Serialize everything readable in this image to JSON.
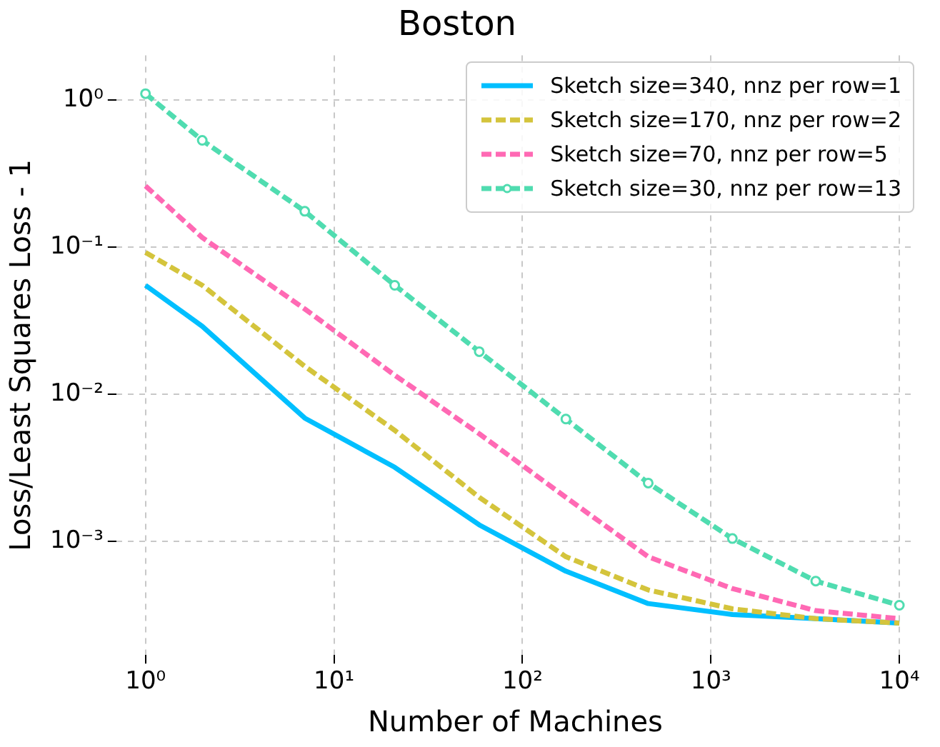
{
  "chart_data": {
    "type": "line",
    "title": "Boston",
    "xlabel": "Number of Machines",
    "ylabel": "Loss/Least Squares Loss - 1",
    "log": "xy",
    "grid": true,
    "legend": "top right",
    "xlim": [
      0.7,
      12000
    ],
    "xticks": [
      {
        "value": 1,
        "label": "10⁰"
      },
      {
        "value": 10,
        "label": "10¹"
      },
      {
        "value": 100,
        "label": "10²"
      },
      {
        "value": 1000,
        "label": "10³"
      },
      {
        "value": 10000,
        "label": "10⁴"
      }
    ],
    "ylim": [
      0.00017,
      2
    ],
    "yticks": [
      {
        "value": 0.001,
        "label": "10⁻³"
      },
      {
        "value": 0.01,
        "label": "10⁻²"
      },
      {
        "value": 0.1,
        "label": "10⁻¹"
      },
      {
        "value": 1,
        "label": "10⁰"
      }
    ],
    "x": [
      1,
      2,
      7,
      21,
      59,
      170,
      465,
      1300,
      3600,
      10000
    ],
    "series": [
      {
        "name": "Sketch size=340, nnz per row=1",
        "color": "#00bfff",
        "line_style": "solid",
        "marker": "none",
        "values": [
          0.055,
          0.029,
          0.0069,
          0.0032,
          0.0013,
          0.00063,
          0.00038,
          0.00032,
          0.0003,
          0.00028
        ]
      },
      {
        "name": "Sketch size=170, nnz per row=2",
        "color": "#d4c43c",
        "line_style": "dashed",
        "marker": "none",
        "values": [
          0.092,
          0.055,
          0.0155,
          0.0057,
          0.002,
          0.00079,
          0.00047,
          0.00035,
          0.0003,
          0.00028
        ]
      },
      {
        "name": "Sketch size=70, nnz per row=5",
        "color": "#ff69b4",
        "line_style": "dashed",
        "marker": "none",
        "values": [
          0.26,
          0.116,
          0.038,
          0.0135,
          0.0054,
          0.002,
          0.00079,
          0.00048,
          0.00034,
          0.0003
        ]
      },
      {
        "name": "Sketch size=30, nnz per row=13",
        "color": "#50dcb0",
        "line_style": "dashed",
        "marker": "circle",
        "values": [
          1.1,
          0.53,
          0.175,
          0.055,
          0.0195,
          0.0068,
          0.0025,
          0.00105,
          0.00054,
          0.00037
        ]
      }
    ]
  }
}
